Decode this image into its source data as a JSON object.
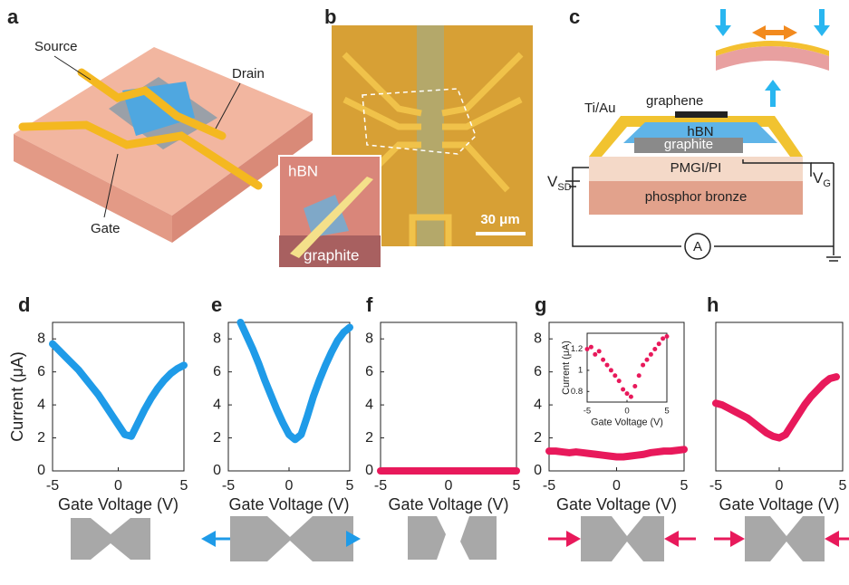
{
  "panels": {
    "a": {
      "label": "a",
      "source": "Source",
      "drain": "Drain",
      "gate": "Gate"
    },
    "b": {
      "label": "b",
      "inset_hbn": "hBN",
      "inset_graphite": "graphite",
      "scale_bar": "30 μm"
    },
    "c": {
      "label": "c",
      "graphene": "graphene",
      "tiau": "Ti/Au",
      "hbn": "hBN",
      "graphite": "graphite",
      "pmgi": "PMGI/PI",
      "bronze": "phosphor bronze",
      "vsd": {
        "symbol": "V",
        "subscript": "SD"
      },
      "vg": {
        "symbol": "V",
        "subscript": "G"
      },
      "ammeter": "A"
    }
  },
  "chart_data": [
    {
      "type": "line",
      "label": "d",
      "ylabel": "Current (μA)",
      "xlabel": "Gate Voltage (V)",
      "color": "#1f9be8",
      "x": [
        -5,
        -4.5,
        -4,
        -3.5,
        -3,
        -2.5,
        -2,
        -1.5,
        -1,
        -0.5,
        0,
        0.5,
        1,
        1.5,
        2,
        2.5,
        3,
        3.5,
        4,
        4.5,
        5
      ],
      "values": [
        7.7,
        7.3,
        6.9,
        6.5,
        6.1,
        5.6,
        5.1,
        4.6,
        4.0,
        3.4,
        2.8,
        2.2,
        2.1,
        2.9,
        3.7,
        4.4,
        5.0,
        5.5,
        5.9,
        6.2,
        6.4
      ],
      "xlim": [
        -5,
        5
      ],
      "ylim": [
        0,
        9
      ],
      "xticks": [
        -5,
        0,
        5
      ],
      "yticks": [
        0,
        2,
        4,
        6,
        8
      ]
    },
    {
      "type": "line",
      "label": "e",
      "xlabel": "Gate Voltage (V)",
      "color": "#1f9be8",
      "x": [
        -4,
        -3.5,
        -3,
        -2.5,
        -2,
        -1.5,
        -1,
        -0.5,
        0,
        0.5,
        1,
        1.5,
        2,
        2.5,
        3,
        3.5,
        4,
        4.5,
        5
      ],
      "values": [
        9.0,
        8.2,
        7.4,
        6.5,
        5.5,
        4.6,
        3.7,
        2.9,
        2.2,
        1.9,
        2.2,
        3.3,
        4.5,
        5.5,
        6.4,
        7.2,
        7.9,
        8.4,
        8.7
      ],
      "xlim": [
        -5,
        5
      ],
      "ylim": [
        0,
        9
      ],
      "xticks": [
        -5,
        0,
        5
      ],
      "yticks": [
        0,
        2,
        4,
        6,
        8
      ]
    },
    {
      "type": "line",
      "label": "f",
      "xlabel": "Gate Voltage (V)",
      "color": "#e8195b",
      "x": [
        -5,
        -4,
        -3,
        -2,
        -1,
        0,
        1,
        2,
        3,
        4,
        5
      ],
      "values": [
        0,
        0,
        0,
        0,
        0,
        0,
        0,
        0,
        0,
        0,
        0
      ],
      "xlim": [
        -5,
        5
      ],
      "ylim": [
        0,
        9
      ],
      "xticks": [
        -5,
        0,
        5
      ],
      "yticks": [
        0,
        2,
        4,
        6,
        8
      ]
    },
    {
      "type": "line",
      "label": "g",
      "xlabel": "Gate Voltage (V)",
      "color": "#e8195b",
      "x": [
        -5,
        -4.5,
        -4,
        -3.5,
        -3,
        -2.5,
        -2,
        -1.5,
        -1,
        -0.5,
        0,
        0.5,
        1,
        1.5,
        2,
        2.5,
        3,
        3.5,
        4,
        4.5,
        5
      ],
      "values": [
        1.2,
        1.2,
        1.15,
        1.1,
        1.15,
        1.1,
        1.05,
        1.0,
        0.95,
        0.9,
        0.85,
        0.85,
        0.9,
        0.95,
        1.0,
        1.1,
        1.15,
        1.2,
        1.2,
        1.25,
        1.3
      ],
      "xlim": [
        -5,
        5
      ],
      "ylim": [
        0,
        9
      ],
      "xticks": [
        -5,
        0,
        5
      ],
      "yticks": [
        0,
        2,
        4,
        6,
        8
      ]
    },
    {
      "type": "line",
      "label": "h",
      "xlabel": "Gate Voltage (V)",
      "color": "#e8195b",
      "x": [
        -5,
        -4.5,
        -4,
        -3.5,
        -3,
        -2.5,
        -2,
        -1.5,
        -1,
        -0.5,
        0,
        0.5,
        1,
        1.5,
        2,
        2.5,
        3,
        3.5,
        4,
        4.5
      ],
      "values": [
        4.1,
        4.0,
        3.8,
        3.6,
        3.4,
        3.2,
        2.9,
        2.6,
        2.3,
        2.1,
        2.0,
        2.2,
        2.8,
        3.4,
        4.0,
        4.5,
        4.9,
        5.3,
        5.6,
        5.7
      ],
      "xlim": [
        -5,
        5
      ],
      "ylim": [
        0,
        9
      ],
      "xticks": [
        -5,
        0,
        5
      ]
    },
    {
      "type": "scatter",
      "ylabel": "Current (μA)",
      "xlabel": "Gate Voltage (V)",
      "color": "#e8195b",
      "x": [
        -5,
        -4.5,
        -4,
        -3.5,
        -3,
        -2.5,
        -2,
        -1.5,
        -1,
        -0.5,
        0,
        0.5,
        1,
        1.5,
        2,
        2.5,
        3,
        3.5,
        4,
        4.5,
        5
      ],
      "values": [
        1.2,
        1.22,
        1.15,
        1.18,
        1.1,
        1.05,
        1.0,
        0.95,
        0.9,
        0.82,
        0.78,
        0.75,
        0.85,
        0.95,
        1.05,
        1.1,
        1.15,
        1.2,
        1.25,
        1.3,
        1.32
      ],
      "xlim": [
        -5,
        5
      ],
      "ylim": [
        0.7,
        1.35
      ],
      "xticks": [
        -5,
        0,
        5
      ],
      "yticks": [
        0.8,
        1,
        1.2
      ]
    }
  ]
}
